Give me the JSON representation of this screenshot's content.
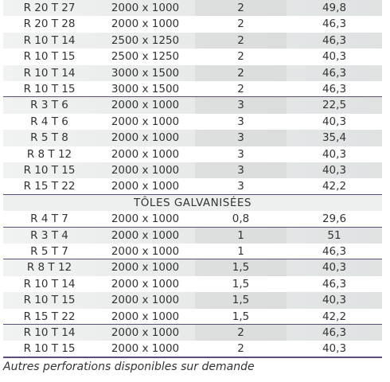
{
  "table": {
    "groups": [
      {
        "rows": [
          [
            "R 20 T 27",
            "2000 x 1000",
            "2",
            "49,8"
          ],
          [
            "R 20 T 28",
            "2000 x 1000",
            "2",
            "46,3"
          ],
          [
            "R 10 T 14",
            "2500 x 1250",
            "2",
            "46,3"
          ],
          [
            "R 10 T 15",
            "2500 x 1250",
            "2",
            "40,3"
          ],
          [
            "R 10 T 14",
            "3000 x 1500",
            "2",
            "46,3"
          ],
          [
            "R 10 T 15",
            "3000 x 1500",
            "2",
            "46,3"
          ]
        ]
      },
      {
        "rows": [
          [
            "R 3 T 6",
            "2000 x 1000",
            "3",
            "22,5"
          ],
          [
            "R 4 T 6",
            "2000 x 1000",
            "3",
            "40,3"
          ],
          [
            "R 5 T 8",
            "2000 x 1000",
            "3",
            "35,4"
          ],
          [
            "R 8 T 12",
            "2000 x 1000",
            "3",
            "40,3"
          ],
          [
            "R 10 T 15",
            "2000 x 1000",
            "3",
            "40,3"
          ],
          [
            "R 15 T 22",
            "2000 x 1000",
            "3",
            "42,2"
          ]
        ]
      },
      {
        "title": "TÔLES GALVANISÉES"
      },
      {
        "rows": [
          [
            "R 4 T 7",
            "2000 x 1000",
            "0,8",
            "29,6"
          ]
        ]
      },
      {
        "rows": [
          [
            "R 3 T 4",
            "2000 x 1000",
            "1",
            "51"
          ],
          [
            "R 5 T 7",
            "2000 x 1000",
            "1",
            "46,3"
          ]
        ]
      },
      {
        "rows": [
          [
            "R 8 T 12",
            "2000 x 1000",
            "1,5",
            "40,3"
          ],
          [
            "R 10 T 14",
            "2000 x 1000",
            "1,5",
            "46,3"
          ],
          [
            "R 10 T 15",
            "2000 x 1000",
            "1,5",
            "40,3"
          ],
          [
            "R 15 T 22",
            "2000 x 1000",
            "1,5",
            "42,2"
          ]
        ]
      },
      {
        "rows": [
          [
            "R 10 T 14",
            "2000 x 1000",
            "2",
            "46,3"
          ],
          [
            "R 10 T 15",
            "2000 x 1000",
            "2",
            "40,3"
          ]
        ]
      }
    ],
    "footnote": "Autres perforations disponibles sur demande"
  }
}
